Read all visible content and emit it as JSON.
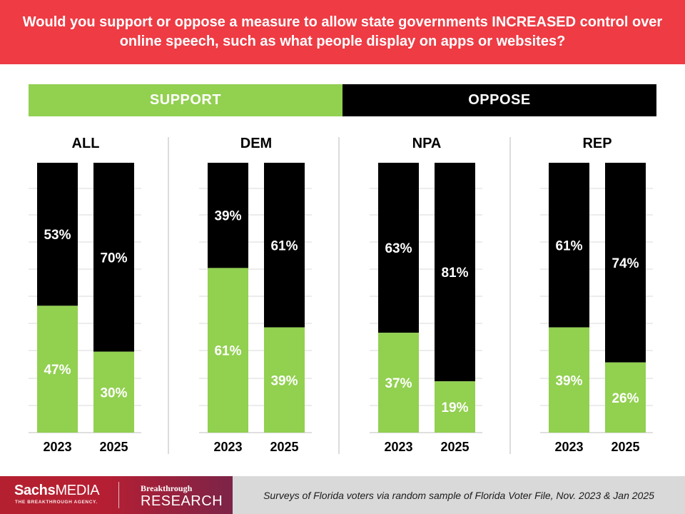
{
  "header": {
    "title": "Would you support or oppose a measure to allow state governments INCREASED control over online speech, such as what people display on apps or websites?"
  },
  "legend": {
    "support_label": "SUPPORT",
    "oppose_label": "OPPOSE"
  },
  "colors": {
    "header_bg": "#ee3b44",
    "support": "#92d050",
    "oppose": "#000000",
    "footer_note_bg": "#d9d9d9"
  },
  "chart_data": {
    "type": "bar",
    "stacked": true,
    "normalized": true,
    "title": "Would you support or oppose a measure to allow state governments INCREASED control over online speech, such as what people display on apps or websites?",
    "ylim": [
      0,
      100
    ],
    "legend": [
      "SUPPORT",
      "OPPOSE"
    ],
    "groups": [
      {
        "name": "ALL",
        "bars": [
          {
            "year": "2023",
            "support": 47,
            "oppose": 53
          },
          {
            "year": "2025",
            "support": 30,
            "oppose": 70
          }
        ]
      },
      {
        "name": "DEM",
        "bars": [
          {
            "year": "2023",
            "support": 61,
            "oppose": 39
          },
          {
            "year": "2025",
            "support": 39,
            "oppose": 61
          }
        ]
      },
      {
        "name": "NPA",
        "bars": [
          {
            "year": "2023",
            "support": 37,
            "oppose": 63
          },
          {
            "year": "2025",
            "support": 19,
            "oppose": 81
          }
        ]
      },
      {
        "name": "REP",
        "bars": [
          {
            "year": "2023",
            "support": 39,
            "oppose": 61
          },
          {
            "year": "2025",
            "support": 26,
            "oppose": 74
          }
        ]
      }
    ]
  },
  "footer": {
    "brand_sachs": "Sachs",
    "brand_media": "MEDIA",
    "brand_tagline": "THE BREAKTHROUGH AGENCY.",
    "brand_bt_top": "Breakthrough",
    "brand_bt_bottom": "RESEARCH",
    "note": "Surveys of Florida voters via random sample of Florida Voter File, Nov. 2023 & Jan 2025"
  }
}
